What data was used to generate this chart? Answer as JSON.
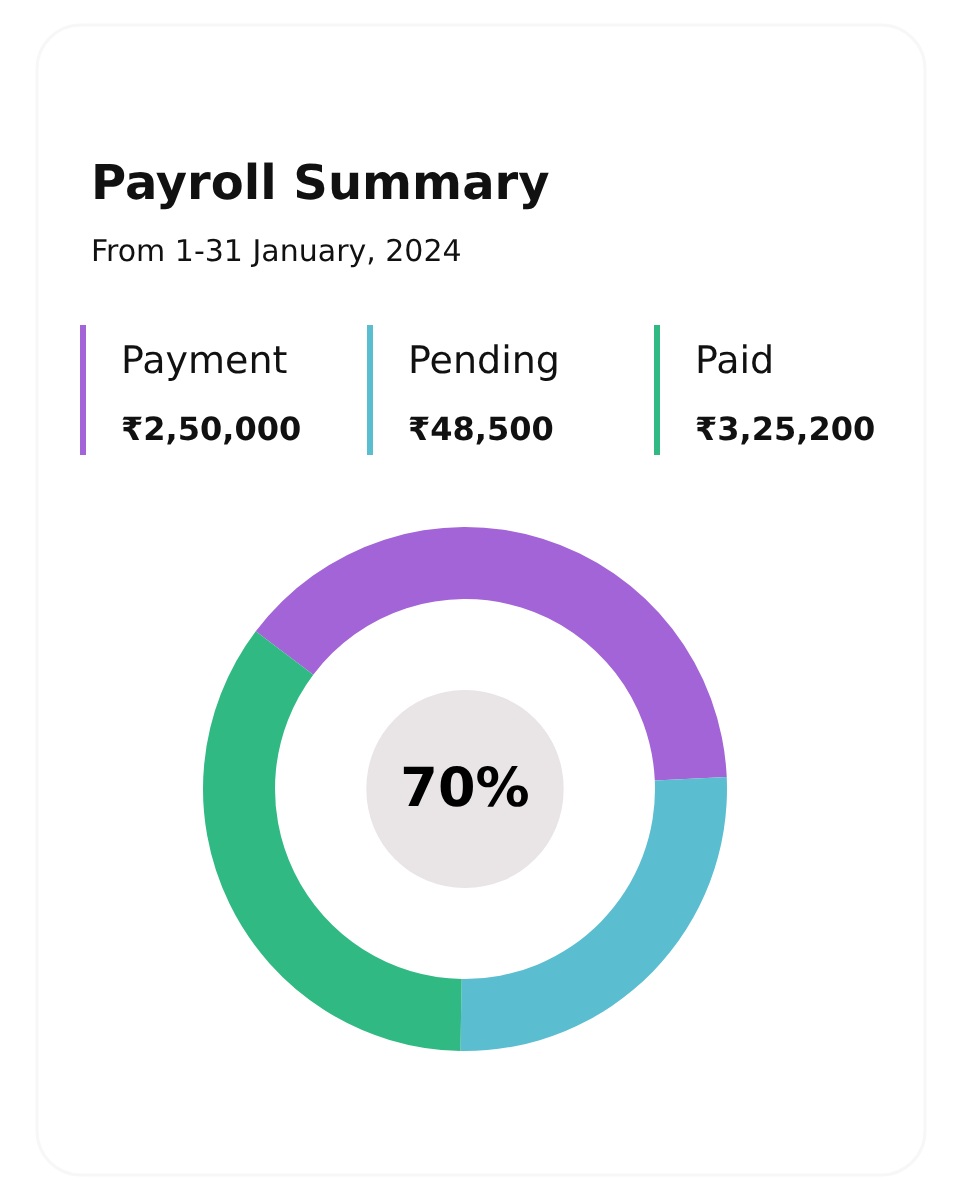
{
  "chart_data": {
    "type": "donut",
    "title": "Payroll Summary",
    "subtitle": "From 1-31 January, 2024",
    "categories": [
      "Payment",
      "Pending",
      "Paid"
    ],
    "values": [
      39,
      26,
      35
    ],
    "colors": [
      "#a364d8",
      "#5abdd0",
      "#31b983"
    ],
    "annotations": [
      "₹2,50,000",
      "₹48,500",
      "₹3,25,200",
      "70%"
    ],
    "legend": "top"
  }
}
